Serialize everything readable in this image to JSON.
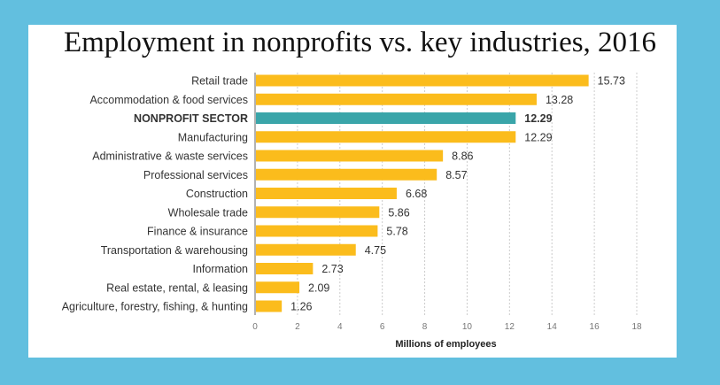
{
  "chart_data": {
    "type": "bar",
    "orientation": "horizontal",
    "title": "Employment in nonprofits vs. key industries, 2016",
    "xlabel": "Millions of employees",
    "ylabel": "",
    "xlim": [
      0,
      18
    ],
    "xticks": [
      0,
      2,
      4,
      6,
      8,
      10,
      12,
      14,
      16,
      18
    ],
    "grid": "vertical dotted",
    "categories": [
      "Retail trade",
      "Accommodation & food services",
      "NONPROFIT SECTOR",
      "Manufacturing",
      "Administrative & waste services",
      "Professional services",
      "Construction",
      "Wholesale trade",
      "Finance & insurance",
      "Transportation & warehousing",
      "Information",
      "Real estate, rental, & leasing",
      "Agriculture, forestry, fishing, & hunting"
    ],
    "values": [
      15.73,
      13.28,
      12.29,
      12.29,
      8.86,
      8.57,
      6.68,
      5.86,
      5.78,
      4.75,
      2.73,
      2.09,
      1.26
    ],
    "value_labels": [
      "15.73",
      "13.28",
      "12.29",
      "12.29",
      "8.86",
      "8.57",
      "6.68",
      "5.86",
      "5.78",
      "4.75",
      "2.73",
      "2.09",
      "1.26"
    ],
    "highlight_index": 2,
    "colors": {
      "bar": "#fbbc1c",
      "highlight": "#3aa5a9",
      "background": "#62bfdf"
    }
  }
}
